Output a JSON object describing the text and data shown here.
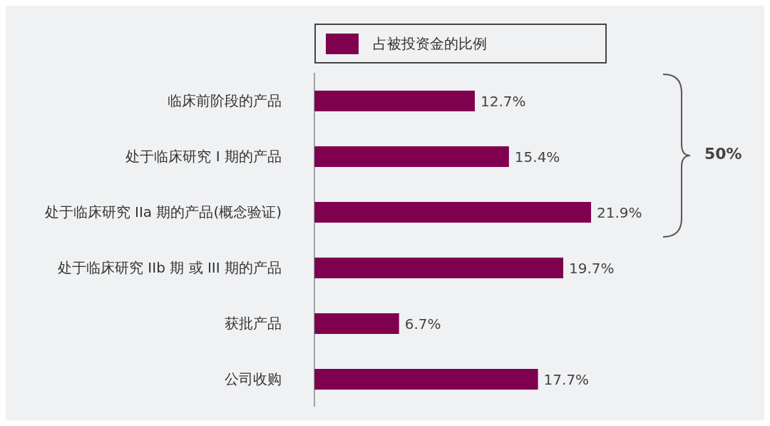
{
  "chart_data": {
    "type": "bar",
    "orientation": "horizontal",
    "categories": [
      "临床前阶段的产品",
      "处于临床研究 I 期的产品",
      "处于临床研究 IIa 期的产品(概念验证)",
      "处于临床研究 IIb 期 或  III 期的产品",
      "获批产品",
      "公司收购"
    ],
    "series": [
      {
        "name": "占被投资金的比例",
        "color": "#800050",
        "values": [
          12.7,
          15.4,
          21.9,
          19.7,
          6.7,
          17.7
        ],
        "value_labels": [
          "12.7%",
          "15.4%",
          "21.9%",
          "19.7%",
          "6.7%",
          "17.7%"
        ]
      }
    ],
    "annotations": [
      "50%"
    ],
    "legend": "top",
    "grid": false
  }
}
